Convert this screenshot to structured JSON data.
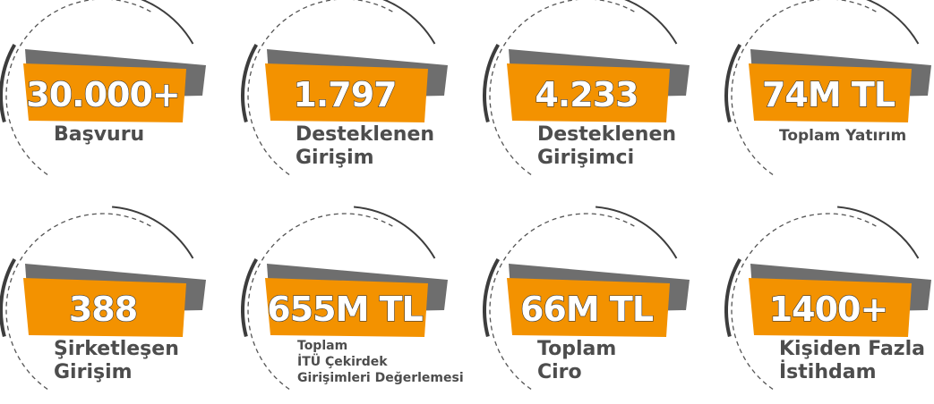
{
  "items": [
    {
      "value": "30.000+",
      "label": [
        "Başvuru"
      ]
    },
    {
      "value": "1.797",
      "label": [
        "Desteklenen",
        "Girişim"
      ]
    },
    {
      "value": "4.233",
      "label": [
        "Desteklenen",
        "Girişimci"
      ]
    },
    {
      "value": "74M TL",
      "label": [
        "Toplam Yatırım"
      ]
    },
    {
      "value": "388",
      "label": [
        "Şirketleşen",
        "Girişim"
      ]
    },
    {
      "value": "655M TL",
      "label": [
        "Toplam",
        "İTÜ Çekirdek",
        "Girişimleri Değerlemesi"
      ]
    },
    {
      "value": "66M TL",
      "label": [
        "Toplam",
        "Ciro"
      ]
    },
    {
      "value": "1400+",
      "label": [
        "Kişiden Fazla",
        "İstihdam"
      ]
    }
  ]
}
